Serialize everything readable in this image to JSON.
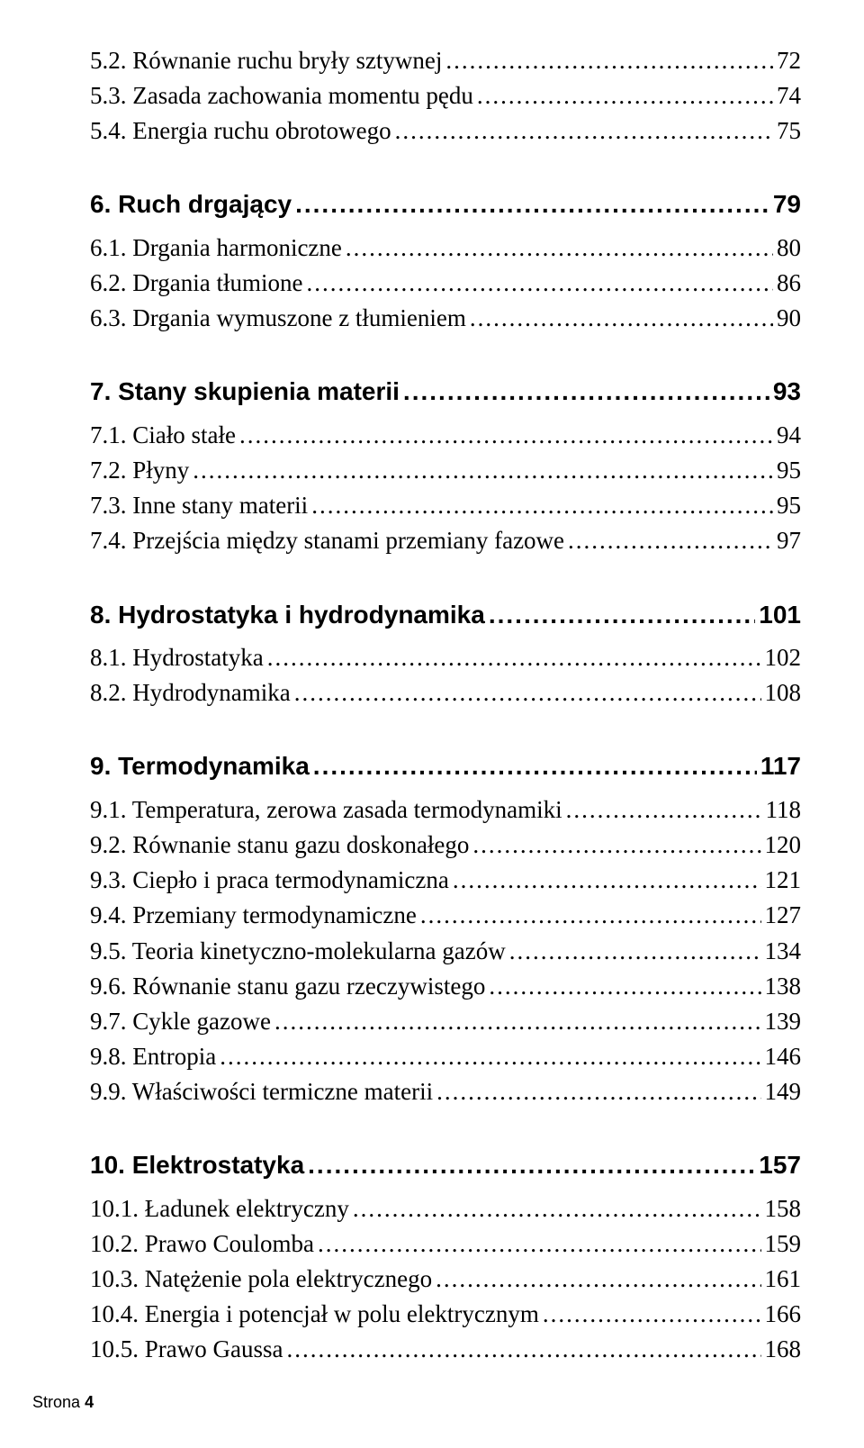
{
  "toc": {
    "section5": {
      "items": [
        {
          "label": "5.2. Równanie ruchu bryły sztywnej",
          "page": "72"
        },
        {
          "label": "5.3. Zasada zachowania momentu pędu",
          "page": "74"
        },
        {
          "label": "5.4. Energia ruchu obrotowego",
          "page": "75"
        }
      ]
    },
    "chapter6": {
      "title": "6. Ruch drgający",
      "page": "79",
      "items": [
        {
          "label": "6.1. Drgania harmoniczne",
          "page": "80"
        },
        {
          "label": "6.2. Drgania tłumione",
          "page": "86"
        },
        {
          "label": "6.3. Drgania wymuszone z tłumieniem",
          "page": "90"
        }
      ]
    },
    "chapter7": {
      "title": "7. Stany skupienia materii",
      "page": "93",
      "items": [
        {
          "label": "7.1. Ciało stałe",
          "page": "94"
        },
        {
          "label": "7.2. Płyny",
          "page": "95"
        },
        {
          "label": "7.3. Inne stany materii",
          "page": "95"
        },
        {
          "label": "7.4. Przejścia między stanami przemiany fazowe",
          "page": "97"
        }
      ]
    },
    "chapter8": {
      "title": "8. Hydrostatyka i hydrodynamika",
      "page": "101",
      "items": [
        {
          "label": "8.1. Hydrostatyka",
          "page": "102"
        },
        {
          "label": "8.2. Hydrodynamika",
          "page": "108"
        }
      ]
    },
    "chapter9": {
      "title": "9. Termodynamika",
      "page": "117",
      "items": [
        {
          "label": "9.1. Temperatura, zerowa zasada termodynamiki",
          "page": "118"
        },
        {
          "label": "9.2. Równanie stanu gazu doskonałego",
          "page": "120"
        },
        {
          "label": "9.3. Ciepło i praca termodynamiczna",
          "page": "121"
        },
        {
          "label": "9.4. Przemiany termodynamiczne",
          "page": "127"
        },
        {
          "label": "9.5. Teoria kinetyczno-molekularna gazów",
          "page": "134"
        },
        {
          "label": "9.6. Równanie stanu gazu rzeczywistego",
          "page": "138"
        },
        {
          "label": "9.7. Cykle gazowe",
          "page": "139"
        },
        {
          "label": "9.8. Entropia",
          "page": "146"
        },
        {
          "label": "9.9. Właściwości termiczne materii",
          "page": "149"
        }
      ]
    },
    "chapter10": {
      "title": "10. Elektrostatyka",
      "page": "157",
      "items": [
        {
          "label": "10.1. Ładunek elektryczny",
          "page": "158"
        },
        {
          "label": "10.2. Prawo Coulomba",
          "page": "159"
        },
        {
          "label": "10.3. Natężenie pola elektrycznego",
          "page": "161"
        },
        {
          "label": "10.4. Energia i potencjał w polu elektrycznym",
          "page": "166"
        },
        {
          "label": "10.5. Prawo Gaussa",
          "page": "168"
        }
      ]
    }
  },
  "footer": {
    "label": "Strona",
    "number": "4"
  }
}
